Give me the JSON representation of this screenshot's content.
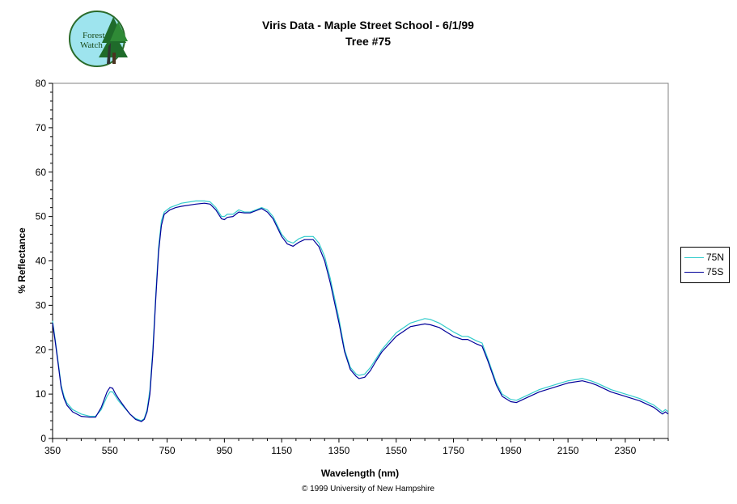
{
  "logo": {
    "text_line1": "Forest",
    "text_line2": "Watch"
  },
  "title_line1": "Viris Data - Maple Street School - 6/1/99",
  "title_line2": "Tree #75",
  "credit": "© 1999 University of New Hampshire",
  "chart_data": {
    "type": "line",
    "xlabel": "Wavelength (nm)",
    "ylabel": "% Reflectance",
    "xlim": [
      350,
      2500
    ],
    "ylim": [
      0,
      80
    ],
    "xticks": [
      350,
      550,
      750,
      950,
      1150,
      1350,
      1550,
      1750,
      1950,
      2150,
      2350
    ],
    "yticks": [
      0,
      10,
      20,
      30,
      40,
      50,
      60,
      70,
      80
    ],
    "grid": false,
    "legend_position": "right",
    "series": [
      {
        "name": "75N",
        "color": "#33CCCC",
        "x": [
          350,
          360,
          370,
          380,
          390,
          400,
          420,
          450,
          480,
          500,
          520,
          540,
          550,
          560,
          570,
          580,
          600,
          620,
          640,
          660,
          670,
          680,
          690,
          700,
          710,
          720,
          730,
          740,
          750,
          760,
          780,
          800,
          850,
          880,
          900,
          920,
          940,
          950,
          960,
          980,
          1000,
          1020,
          1040,
          1060,
          1080,
          1100,
          1120,
          1150,
          1170,
          1190,
          1210,
          1230,
          1260,
          1280,
          1300,
          1320,
          1350,
          1370,
          1390,
          1410,
          1420,
          1440,
          1460,
          1480,
          1500,
          1550,
          1600,
          1650,
          1670,
          1700,
          1750,
          1780,
          1800,
          1830,
          1850,
          1870,
          1900,
          1920,
          1950,
          1970,
          2000,
          2050,
          2100,
          2150,
          2200,
          2230,
          2250,
          2300,
          2350,
          2400,
          2450,
          2470,
          2480,
          2490,
          2500
        ],
        "y": [
          26.5,
          22,
          17,
          12,
          9.5,
          8,
          6.5,
          5.5,
          5,
          5,
          6.5,
          9.5,
          10.5,
          10.5,
          9.5,
          8.5,
          7,
          5.5,
          4.5,
          4,
          4.5,
          6.5,
          11,
          20,
          32,
          43,
          49,
          51,
          51.5,
          52,
          52.5,
          53,
          53.5,
          53.5,
          53.3,
          52,
          50,
          50,
          50.5,
          50.5,
          51.5,
          51,
          51,
          51.5,
          52,
          51.5,
          50,
          46,
          44.5,
          44,
          45,
          45.5,
          45.5,
          44,
          41,
          36,
          27,
          20,
          16,
          14.5,
          14.2,
          14.5,
          16,
          18,
          20,
          23.8,
          26,
          27,
          26.8,
          26,
          24,
          23,
          23,
          22,
          21.5,
          18,
          12.5,
          10,
          8.8,
          8.6,
          9.5,
          11,
          12,
          13,
          13.5,
          13,
          12.5,
          11,
          10,
          9,
          7.5,
          6.5,
          6,
          6.5,
          6
        ]
      },
      {
        "name": "75S",
        "color": "#000099",
        "x": [
          350,
          360,
          370,
          380,
          390,
          400,
          420,
          450,
          480,
          500,
          520,
          540,
          550,
          560,
          570,
          580,
          600,
          620,
          640,
          660,
          670,
          680,
          690,
          700,
          710,
          720,
          730,
          740,
          750,
          760,
          780,
          800,
          850,
          880,
          900,
          920,
          940,
          950,
          960,
          980,
          1000,
          1020,
          1040,
          1060,
          1080,
          1100,
          1120,
          1150,
          1170,
          1190,
          1210,
          1230,
          1260,
          1280,
          1300,
          1320,
          1350,
          1370,
          1390,
          1410,
          1420,
          1440,
          1460,
          1480,
          1500,
          1550,
          1600,
          1650,
          1670,
          1700,
          1750,
          1780,
          1800,
          1830,
          1850,
          1870,
          1900,
          1920,
          1950,
          1970,
          2000,
          2050,
          2100,
          2150,
          2200,
          2230,
          2250,
          2300,
          2350,
          2400,
          2450,
          2470,
          2480,
          2490,
          2500
        ],
        "y": [
          26,
          21.5,
          16.5,
          11.5,
          9,
          7.5,
          6,
          5,
          4.8,
          4.8,
          7,
          10.5,
          11.5,
          11.3,
          10,
          9,
          7.2,
          5.5,
          4.3,
          3.8,
          4.3,
          6,
          10,
          19,
          31,
          42,
          48,
          50.5,
          51,
          51.5,
          52,
          52.3,
          52.8,
          53,
          52.8,
          51.5,
          49.5,
          49.3,
          49.8,
          50,
          51,
          50.8,
          50.8,
          51.3,
          51.8,
          51,
          49.5,
          45.5,
          43.8,
          43.3,
          44.2,
          44.8,
          44.8,
          43.2,
          40,
          35,
          26,
          19.5,
          15.5,
          14,
          13.5,
          13.8,
          15.3,
          17.5,
          19.5,
          23,
          25.2,
          25.8,
          25.6,
          25,
          23,
          22.3,
          22.3,
          21.3,
          20.8,
          17.5,
          12,
          9.5,
          8.3,
          8.1,
          9,
          10.5,
          11.5,
          12.5,
          13,
          12.5,
          12,
          10.5,
          9.5,
          8.5,
          7,
          6,
          5.5,
          6,
          5.5
        ]
      }
    ]
  }
}
